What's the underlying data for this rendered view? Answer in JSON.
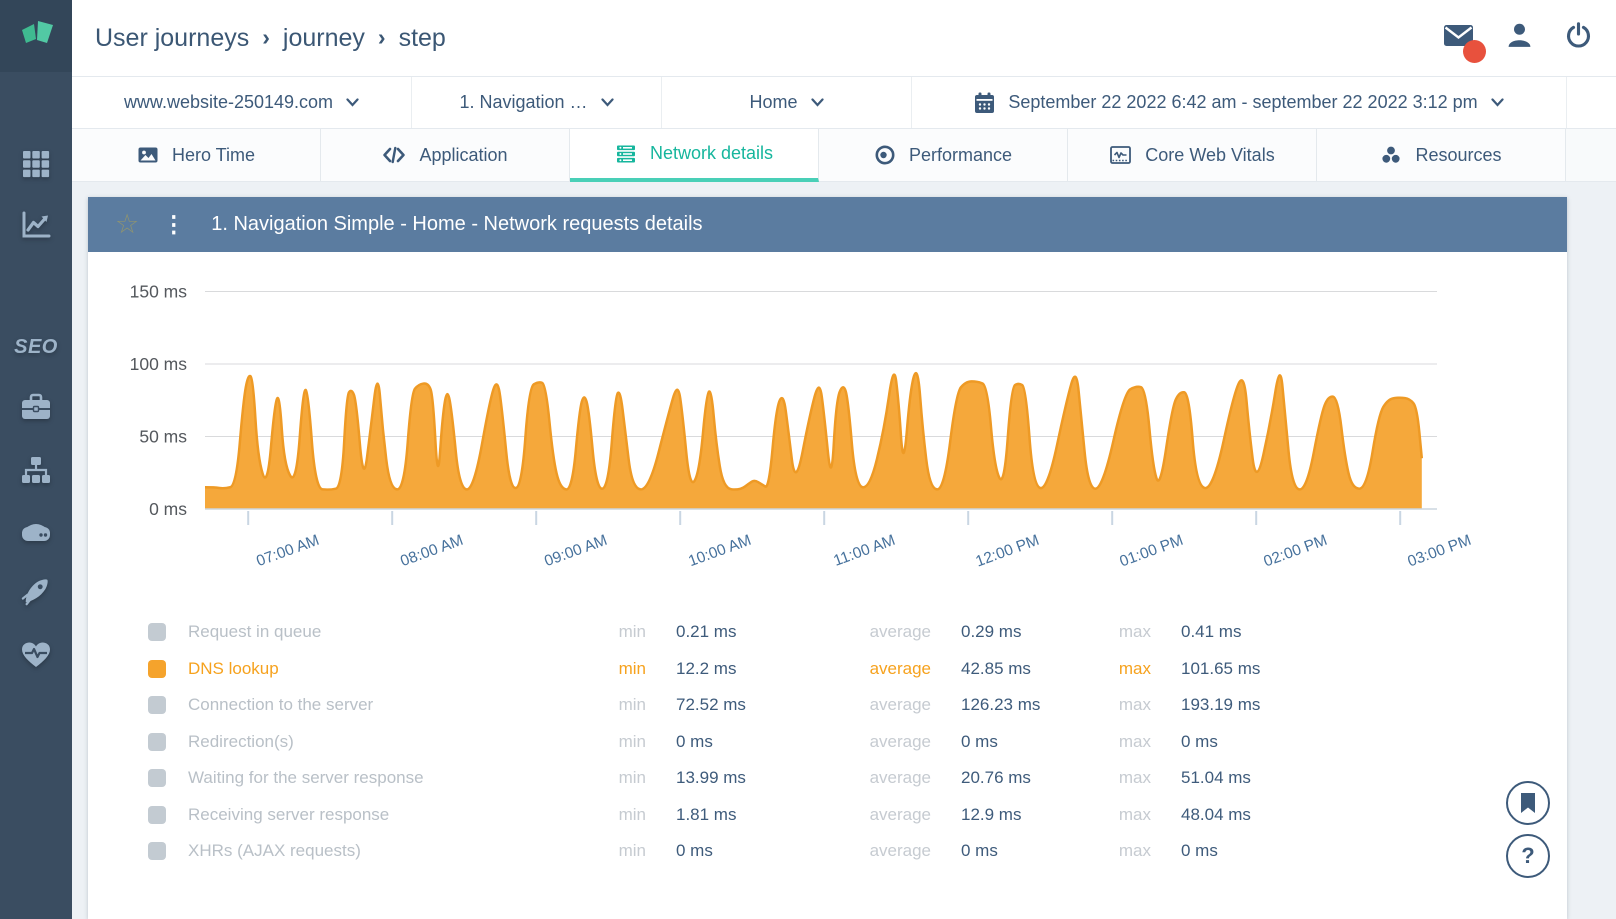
{
  "sidebar": {
    "seo_label": "SEO"
  },
  "header": {
    "breadcrumb": [
      "User journeys",
      "journey",
      "step"
    ],
    "separator": "›"
  },
  "toolbar": {
    "website": "www.website-250149.com",
    "journey": "1. Navigation …",
    "step": "Home",
    "date_range": "September 22 2022 6:42 am - september 22 2022 3:12 pm"
  },
  "tabs": [
    {
      "label": "Hero Time",
      "active": false
    },
    {
      "label": "Application",
      "active": false
    },
    {
      "label": "Network details",
      "active": true
    },
    {
      "label": "Performance",
      "active": false
    },
    {
      "label": "Core Web Vitals",
      "active": false
    },
    {
      "label": "Resources",
      "active": false
    }
  ],
  "panel": {
    "title": "1. Navigation Simple - Home - Network requests details",
    "star_glyph": "☆",
    "kebab_glyph": "⋮"
  },
  "chart_data": {
    "type": "area",
    "title": "1. Navigation Simple - Home - Network requests details",
    "x_unit": "minutes since 06:42 AM",
    "y_unit": "ms",
    "ylim": [
      0,
      150
    ],
    "grid": true,
    "legend_position": "bottom",
    "x_range_minutes": [
      0,
      510
    ],
    "x_tick_minutes": [
      18,
      78,
      138,
      198,
      258,
      318,
      378,
      438,
      498
    ],
    "x_tick_labels": [
      "07:00 AM",
      "08:00 AM",
      "09:00 AM",
      "10:00 AM",
      "11:00 AM",
      "12:00 PM",
      "01:00 PM",
      "02:00 PM",
      "03:00 PM"
    ],
    "y_ticks": [
      150,
      100,
      50,
      0
    ],
    "y_tick_labels": [
      "150 ms",
      "100 ms",
      "50 ms",
      "0 ms"
    ],
    "series": [
      {
        "name": "DNS lookup",
        "color": "#F5A83B",
        "stroke": "#EE9A25",
        "points": [
          [
            0,
            15
          ],
          [
            4,
            15
          ],
          [
            8,
            14
          ],
          [
            13,
            16
          ],
          [
            16,
            75
          ],
          [
            18,
            93
          ],
          [
            20,
            90
          ],
          [
            22,
            35
          ],
          [
            26,
            14
          ],
          [
            29,
            72
          ],
          [
            31,
            80
          ],
          [
            33,
            30
          ],
          [
            38,
            16
          ],
          [
            41,
            84
          ],
          [
            43,
            80
          ],
          [
            46,
            14
          ],
          [
            52,
            13
          ],
          [
            57,
            15
          ],
          [
            59,
            78
          ],
          [
            61,
            83
          ],
          [
            63,
            75
          ],
          [
            66,
            16
          ],
          [
            69,
            55
          ],
          [
            72,
            97
          ],
          [
            74,
            55
          ],
          [
            77,
            14
          ],
          [
            83,
            13
          ],
          [
            86,
            80
          ],
          [
            89,
            86
          ],
          [
            93,
            87
          ],
          [
            95,
            78
          ],
          [
            97,
            16
          ],
          [
            99,
            65
          ],
          [
            101,
            84
          ],
          [
            103,
            65
          ],
          [
            106,
            14
          ],
          [
            112,
            13
          ],
          [
            119,
            78
          ],
          [
            122,
            90
          ],
          [
            124,
            65
          ],
          [
            127,
            14
          ],
          [
            132,
            15
          ],
          [
            135,
            84
          ],
          [
            139,
            88
          ],
          [
            142,
            86
          ],
          [
            145,
            35
          ],
          [
            148,
            14
          ],
          [
            153,
            13
          ],
          [
            156,
            68
          ],
          [
            158,
            80
          ],
          [
            160,
            68
          ],
          [
            163,
            14
          ],
          [
            168,
            14
          ],
          [
            171,
            78
          ],
          [
            173,
            82
          ],
          [
            175,
            55
          ],
          [
            178,
            14
          ],
          [
            185,
            13
          ],
          [
            193,
            65
          ],
          [
            197,
            88
          ],
          [
            199,
            65
          ],
          [
            202,
            14
          ],
          [
            206,
            25
          ],
          [
            209,
            80
          ],
          [
            211,
            82
          ],
          [
            213,
            45
          ],
          [
            216,
            14
          ],
          [
            223,
            13
          ],
          [
            227,
            18
          ],
          [
            229,
            20
          ],
          [
            232,
            17
          ],
          [
            235,
            14
          ],
          [
            238,
            70
          ],
          [
            241,
            80
          ],
          [
            243,
            55
          ],
          [
            246,
            14
          ],
          [
            252,
            65
          ],
          [
            256,
            90
          ],
          [
            258,
            65
          ],
          [
            261,
            15
          ],
          [
            263,
            75
          ],
          [
            266,
            87
          ],
          [
            268,
            75
          ],
          [
            271,
            16
          ],
          [
            277,
            14
          ],
          [
            283,
            55
          ],
          [
            287,
            101
          ],
          [
            289,
            75
          ],
          [
            291,
            25
          ],
          [
            294,
            85
          ],
          [
            297,
            99
          ],
          [
            299,
            55
          ],
          [
            302,
            14
          ],
          [
            308,
            13
          ],
          [
            313,
            80
          ],
          [
            317,
            88
          ],
          [
            322,
            88
          ],
          [
            326,
            85
          ],
          [
            329,
            28
          ],
          [
            333,
            15
          ],
          [
            336,
            84
          ],
          [
            339,
            87
          ],
          [
            342,
            84
          ],
          [
            345,
            16
          ],
          [
            351,
            13
          ],
          [
            359,
            75
          ],
          [
            363,
            98
          ],
          [
            365,
            65
          ],
          [
            368,
            14
          ],
          [
            374,
            14
          ],
          [
            383,
            80
          ],
          [
            388,
            85
          ],
          [
            392,
            83
          ],
          [
            395,
            28
          ],
          [
            398,
            14
          ],
          [
            403,
            70
          ],
          [
            406,
            81
          ],
          [
            410,
            80
          ],
          [
            413,
            16
          ],
          [
            420,
            13
          ],
          [
            429,
            82
          ],
          [
            433,
            93
          ],
          [
            435,
            55
          ],
          [
            438,
            15
          ],
          [
            444,
            60
          ],
          [
            448,
            102
          ],
          [
            450,
            65
          ],
          [
            453,
            14
          ],
          [
            459,
            13
          ],
          [
            465,
            65
          ],
          [
            468,
            78
          ],
          [
            472,
            77
          ],
          [
            475,
            35
          ],
          [
            478,
            14
          ],
          [
            484,
            14
          ],
          [
            489,
            65
          ],
          [
            493,
            76
          ],
          [
            498,
            77
          ],
          [
            502,
            76
          ],
          [
            505,
            70
          ],
          [
            507,
            35
          ]
        ]
      }
    ]
  },
  "legend": {
    "keys": {
      "min": "min",
      "average": "average",
      "max": "max"
    },
    "rows": [
      {
        "label": "Request in queue",
        "min": "0.21 ms",
        "average": "0.29 ms",
        "max": "0.41 ms",
        "color": "#C3CBD2",
        "active": false
      },
      {
        "label": "DNS lookup",
        "min": "12.2 ms",
        "average": "42.85 ms",
        "max": "101.65 ms",
        "color": "#F5A32C",
        "active": true
      },
      {
        "label": "Connection to the server",
        "min": "72.52 ms",
        "average": "126.23 ms",
        "max": "193.19 ms",
        "color": "#C3CBD2",
        "active": false
      },
      {
        "label": "Redirection(s)",
        "min": "0 ms",
        "average": "0 ms",
        "max": "0 ms",
        "color": "#C3CBD2",
        "active": false
      },
      {
        "label": "Waiting for the server response",
        "min": "13.99 ms",
        "average": "20.76 ms",
        "max": "51.04 ms",
        "color": "#C3CBD2",
        "active": false
      },
      {
        "label": "Receiving server response",
        "min": "1.81 ms",
        "average": "12.9 ms",
        "max": "48.04 ms",
        "color": "#C3CBD2",
        "active": false
      },
      {
        "label": "XHRs (AJAX requests)",
        "min": "0 ms",
        "average": "0 ms",
        "max": "0 ms",
        "color": "#C3CBD2",
        "active": false
      }
    ]
  },
  "fab": {
    "help_label": "?"
  }
}
